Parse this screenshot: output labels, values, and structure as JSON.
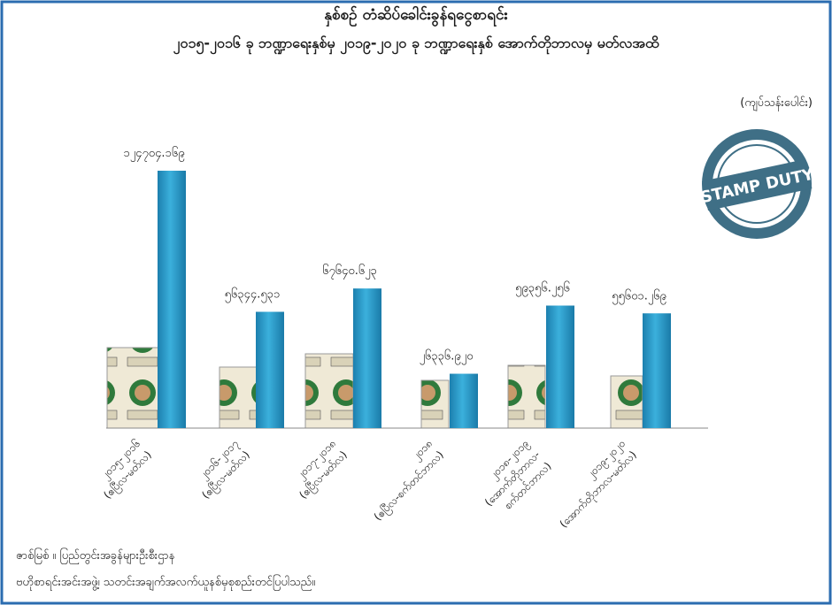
{
  "chart_data": {
    "type": "bar",
    "title": "နှစ်စဉ် တံဆိပ်ခေါင်းခွန်ရငွေစာရင်း",
    "subtitle": "၂၀၁၅-၂၀၁၆ ခု ဘဏ္ဍာရေးနှစ်မှ ၂၀၁၉-၂၀၂၀ ခု ဘဏ္ဍာရေးနှစ် အောက်တိုဘာလမှ မတ်လအထိ",
    "unit_label": "(ကျပ်သန်းပေါင်း)",
    "badge": "STAMP DUTY",
    "categories": [
      [
        "၂၀၁၅-၂၀၁၆",
        "(ဧပြီလ-မတ်လ)"
      ],
      [
        "၂၀၁၆-၂၀၁၇",
        "(ဧပြီလ-မတ်လ)"
      ],
      [
        "၂၀၁၇-၂၀၁၈",
        "(ဧပြီလ-မတ်လ)"
      ],
      [
        "၂၀၁၈",
        "(ဧပြီလ-စက်တင်ဘာလ)"
      ],
      [
        "၂၀၁၈-၂၀၁၉",
        "(အောက်တိုဘာလ-",
        "စက်တင်ဘာလ)"
      ],
      [
        "၂၀၁၉-၂၀၂၀",
        "(အောက်တိုဘာလ-မတ်လ)"
      ]
    ],
    "values": [
      124704.169,
      56344.531,
      67640.623,
      26336.92,
      59356.256,
      55601.269
    ],
    "value_labels": [
      "၁၂၄၇၀၄.၁၆၉",
      "၅၆၃၄၄.၅၃၁",
      "၆၇၆၄၀.၆၂၃",
      "၂၆၃၃၆.၉၂၀",
      "၅၉၃၅၆.၂၅၆",
      "၅၅၆၀၁.၂၆၉"
    ],
    "color": "#2596c6",
    "source": [
      "ဇာစ်မြစ် ။ ပြည်တွင်းအခွန်များဦးစီးဌာန",
      "ဗဟိုစာရင်းအင်းအဖွဲ့၊ သတင်းအချက်အလက်ယူနစ်မှစုစည်းတင်ပြပါသည်။"
    ]
  }
}
